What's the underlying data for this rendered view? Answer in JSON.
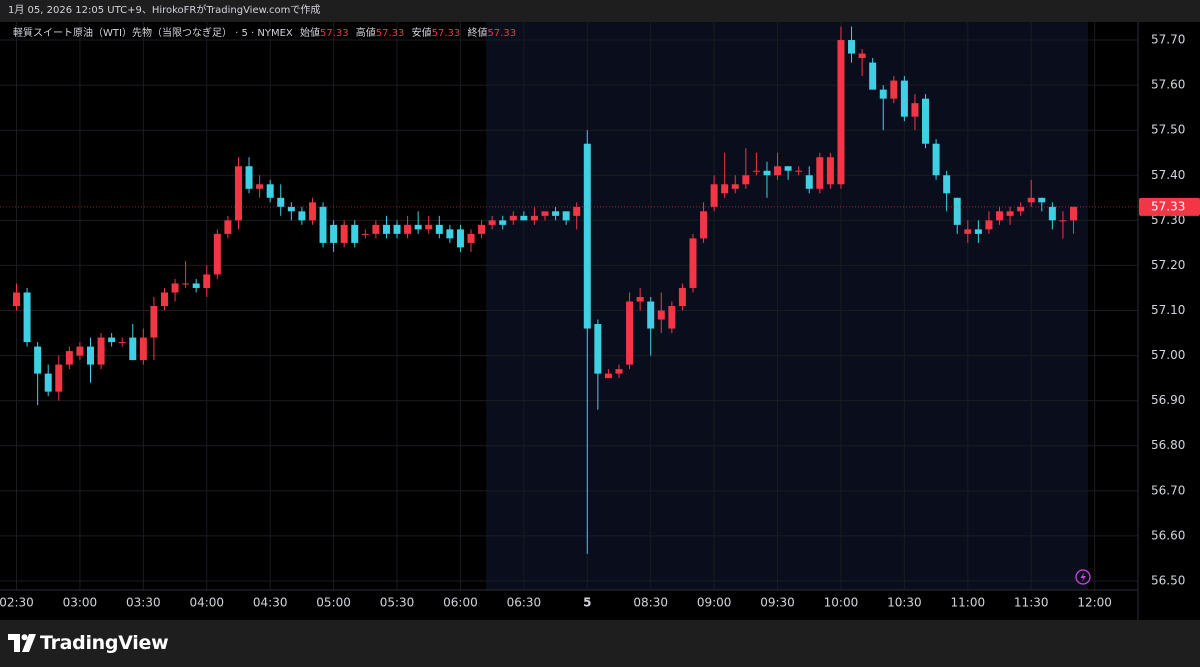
{
  "header": {
    "caption": "1月 05, 2026 12:05 UTC+9、HirokoFRがTradingView.comで作成"
  },
  "chart_data": {
    "type": "candlestick",
    "title": "軽質スイート原油（WTI）先物（当限つなぎ足） · 5 · NYMEX",
    "ohlc_legend": [
      {
        "label": "始値",
        "value": 57.33
      },
      {
        "label": "高値",
        "value": 57.33
      },
      {
        "label": "安値",
        "value": 57.33
      },
      {
        "label": "終値",
        "value": 57.33
      }
    ],
    "x": [
      "02:30",
      "02:35",
      "02:40",
      "02:45",
      "02:50",
      "02:55",
      "03:00",
      "03:05",
      "03:10",
      "03:15",
      "03:20",
      "03:25",
      "03:30",
      "03:35",
      "03:40",
      "03:45",
      "03:50",
      "03:55",
      "04:00",
      "04:05",
      "04:10",
      "04:15",
      "04:20",
      "04:25",
      "04:30",
      "04:35",
      "04:40",
      "04:45",
      "04:50",
      "04:55",
      "05:00",
      "05:05",
      "05:10",
      "05:15",
      "05:20",
      "05:25",
      "05:30",
      "05:35",
      "05:40",
      "05:45",
      "05:50",
      "05:55",
      "06:00",
      "06:05",
      "06:10",
      "06:15",
      "06:20",
      "06:25",
      "06:30",
      "06:35",
      "06:40",
      "06:45",
      "06:50",
      "06:55",
      "08:00",
      "08:05",
      "08:10",
      "08:15",
      "08:20",
      "08:25",
      "08:30",
      "08:35",
      "08:40",
      "08:45",
      "08:50",
      "08:55",
      "09:00",
      "09:05",
      "09:10",
      "09:15",
      "09:20",
      "09:25",
      "09:30",
      "09:35",
      "09:40",
      "09:45",
      "09:50",
      "09:55",
      "10:00",
      "10:05",
      "10:10",
      "10:15",
      "10:20",
      "10:25",
      "10:30",
      "10:35",
      "10:40",
      "10:45",
      "10:50",
      "10:55",
      "11:00",
      "11:05",
      "11:10",
      "11:15",
      "11:20",
      "11:25",
      "11:30",
      "11:35",
      "11:40",
      "11:45",
      "11:50"
    ],
    "open": [
      57.11,
      57.14,
      57.02,
      56.96,
      56.92,
      56.98,
      57.0,
      57.02,
      56.98,
      57.04,
      57.03,
      57.04,
      56.99,
      57.04,
      57.11,
      57.14,
      57.16,
      57.16,
      57.15,
      57.18,
      57.27,
      57.3,
      57.42,
      57.37,
      57.38,
      57.35,
      57.33,
      57.32,
      57.3,
      57.33,
      57.29,
      57.25,
      57.29,
      57.27,
      57.27,
      57.29,
      57.29,
      57.27,
      57.29,
      57.28,
      57.29,
      57.28,
      57.28,
      57.25,
      57.27,
      57.29,
      57.3,
      57.3,
      57.31,
      57.3,
      57.31,
      57.32,
      57.32,
      57.31,
      57.47,
      57.07,
      56.95,
      56.96,
      56.98,
      57.12,
      57.12,
      57.08,
      57.06,
      57.11,
      57.15,
      57.26,
      57.33,
      57.36,
      57.37,
      57.38,
      57.41,
      57.41,
      57.4,
      57.42,
      57.41,
      57.4,
      57.37,
      57.38,
      57.38,
      57.7,
      57.66,
      57.65,
      57.59,
      57.57,
      57.61,
      57.53,
      57.57,
      57.47,
      57.4,
      57.35,
      57.27,
      57.28,
      57.28,
      57.3,
      57.31,
      57.32,
      57.34,
      57.35,
      57.33,
      57.3,
      57.3
    ],
    "high": [
      57.16,
      57.15,
      57.03,
      56.98,
      57.0,
      57.02,
      57.03,
      57.04,
      57.05,
      57.05,
      57.04,
      57.07,
      57.06,
      57.13,
      57.15,
      57.17,
      57.21,
      57.17,
      57.2,
      57.28,
      57.31,
      57.44,
      57.44,
      57.4,
      57.39,
      57.38,
      57.34,
      57.33,
      57.35,
      57.34,
      57.3,
      57.3,
      57.3,
      57.28,
      57.3,
      57.31,
      57.3,
      57.31,
      57.32,
      57.31,
      57.31,
      57.29,
      57.29,
      57.28,
      57.3,
      57.31,
      57.31,
      57.32,
      57.32,
      57.33,
      57.32,
      57.33,
      57.32,
      57.34,
      57.5,
      57.08,
      56.97,
      56.98,
      57.14,
      57.15,
      57.13,
      57.14,
      57.12,
      57.16,
      57.27,
      57.34,
      57.4,
      57.45,
      57.4,
      57.46,
      57.45,
      57.43,
      57.45,
      57.42,
      57.42,
      57.42,
      57.45,
      57.45,
      57.73,
      57.73,
      57.68,
      57.66,
      57.6,
      57.62,
      57.62,
      57.58,
      57.58,
      57.48,
      57.41,
      57.35,
      57.3,
      57.3,
      57.32,
      57.33,
      57.33,
      57.34,
      57.39,
      57.35,
      57.34,
      57.32,
      57.33
    ],
    "low": [
      57.1,
      57.02,
      56.89,
      56.91,
      56.9,
      56.97,
      56.99,
      56.94,
      56.97,
      57.02,
      57.02,
      56.99,
      56.98,
      56.99,
      57.1,
      57.12,
      57.15,
      57.14,
      57.13,
      57.17,
      57.26,
      57.28,
      57.36,
      57.35,
      57.34,
      57.31,
      57.3,
      57.29,
      57.29,
      57.24,
      57.23,
      57.24,
      57.24,
      57.26,
      57.26,
      57.26,
      57.26,
      57.26,
      57.27,
      57.27,
      57.26,
      57.25,
      57.23,
      57.23,
      57.26,
      57.28,
      57.28,
      57.29,
      57.3,
      57.29,
      57.3,
      57.3,
      57.29,
      57.28,
      56.56,
      56.88,
      56.95,
      56.95,
      56.97,
      57.1,
      57.0,
      57.05,
      57.05,
      57.1,
      57.14,
      57.25,
      57.32,
      57.35,
      57.36,
      57.37,
      57.4,
      57.35,
      57.39,
      57.39,
      57.4,
      57.36,
      57.36,
      57.37,
      57.37,
      57.65,
      57.62,
      57.59,
      57.5,
      57.56,
      57.52,
      57.5,
      57.46,
      57.39,
      57.32,
      57.27,
      57.25,
      57.25,
      57.27,
      57.29,
      57.29,
      57.31,
      57.33,
      57.32,
      57.28,
      57.26,
      57.27
    ],
    "close": [
      57.14,
      57.03,
      56.96,
      56.92,
      56.98,
      57.01,
      57.02,
      56.98,
      57.04,
      57.03,
      57.03,
      56.99,
      57.04,
      57.11,
      57.14,
      57.16,
      57.16,
      57.15,
      57.18,
      57.27,
      57.3,
      57.42,
      57.37,
      57.38,
      57.35,
      57.33,
      57.32,
      57.3,
      57.34,
      57.25,
      57.25,
      57.29,
      57.25,
      57.27,
      57.29,
      57.27,
      57.27,
      57.29,
      57.28,
      57.29,
      57.27,
      57.26,
      57.24,
      57.27,
      57.29,
      57.3,
      57.29,
      57.31,
      57.3,
      57.31,
      57.32,
      57.31,
      57.3,
      57.33,
      57.06,
      56.96,
      56.96,
      56.97,
      57.12,
      57.13,
      57.06,
      57.1,
      57.11,
      57.15,
      57.26,
      57.32,
      57.38,
      57.38,
      57.38,
      57.4,
      57.41,
      57.4,
      57.42,
      57.41,
      57.41,
      57.37,
      57.44,
      57.44,
      57.7,
      57.67,
      57.67,
      57.59,
      57.57,
      57.61,
      57.53,
      57.56,
      57.47,
      57.4,
      57.36,
      57.29,
      57.28,
      57.27,
      57.3,
      57.32,
      57.32,
      57.33,
      57.35,
      57.34,
      57.3,
      57.3,
      57.33
    ],
    "up_color": "#f23645",
    "down_color": "#3fd0e4",
    "last_price": 57.33,
    "ylim": [
      56.48,
      57.74
    ],
    "yticks": [
      {
        "value": 56.5,
        "label": "56.50"
      },
      {
        "value": 56.6,
        "label": "56.60"
      },
      {
        "value": 56.7,
        "label": "56.70"
      },
      {
        "value": 56.8,
        "label": "56.80"
      },
      {
        "value": 56.9,
        "label": "56.90"
      },
      {
        "value": 57.0,
        "label": "57.00"
      },
      {
        "value": 57.1,
        "label": "57.10"
      },
      {
        "value": 57.2,
        "label": "57.20"
      },
      {
        "value": 57.3,
        "label": "57.30"
      },
      {
        "value": 57.4,
        "label": "57.40"
      },
      {
        "value": 57.5,
        "label": "57.50"
      },
      {
        "value": 57.6,
        "label": "57.60"
      },
      {
        "value": 57.7,
        "label": "57.70"
      }
    ],
    "xticks": [
      "02:30",
      "03:00",
      "03:30",
      "04:00",
      "04:30",
      "05:00",
      "05:30",
      "06:00",
      "06:30",
      {
        "value": "08:00",
        "label": "5"
      },
      "08:30",
      "09:00",
      "09:30",
      "10:00",
      "10:30",
      "11:00",
      "11:30",
      "12:00"
    ],
    "grid": true
  },
  "footer": {
    "brand": "TradingView"
  }
}
